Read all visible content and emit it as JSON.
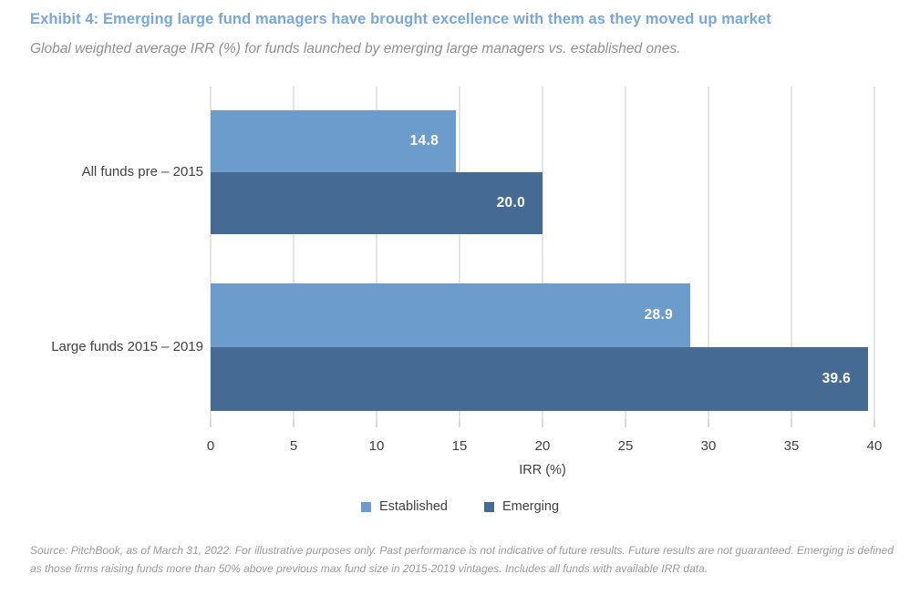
{
  "header": {
    "title": "Exhibit 4: Emerging large fund managers have brought excellence with them as they moved up market",
    "subtitle": "Global weighted average IRR (%) for funds launched by emerging large managers vs. established ones."
  },
  "chart_data": {
    "type": "bar",
    "orientation": "horizontal",
    "categories": [
      "All funds pre – 2015",
      "Large funds 2015 – 2019"
    ],
    "series": [
      {
        "name": "Established",
        "color": "#6C9CCC",
        "values": [
          14.8,
          28.9
        ]
      },
      {
        "name": "Emerging",
        "color": "#456B94",
        "values": [
          20.0,
          39.6
        ]
      }
    ],
    "xlabel": "IRR (%)",
    "xlim": [
      0,
      40
    ],
    "xticks": [
      0,
      5,
      10,
      15,
      20,
      25,
      30,
      35,
      40
    ],
    "grid": "vertical-gridlines",
    "legend_position": "bottom-center",
    "value_labels": "inside-end, white, one decimal"
  },
  "colors": {
    "title_blue": "#79A7DA",
    "established_blue": "#6C9CCC",
    "emerging_blue": "#456B94",
    "gridline_gray": "#E5E5E1",
    "axis_text": "#3F3F3F",
    "subtitle_gray": "#8F8F8F",
    "source_gray": "#9A9A9A"
  },
  "footer": {
    "source": "Source: PitchBook, as of March 31, 2022. For illustrative purposes only. Past performance is not indicative of future results. Future results are not guaranteed. Emerging is defined as those firms raising funds more than 50% above previous max fund size in 2015-2019 vintages. Includes all funds with available IRR data."
  }
}
